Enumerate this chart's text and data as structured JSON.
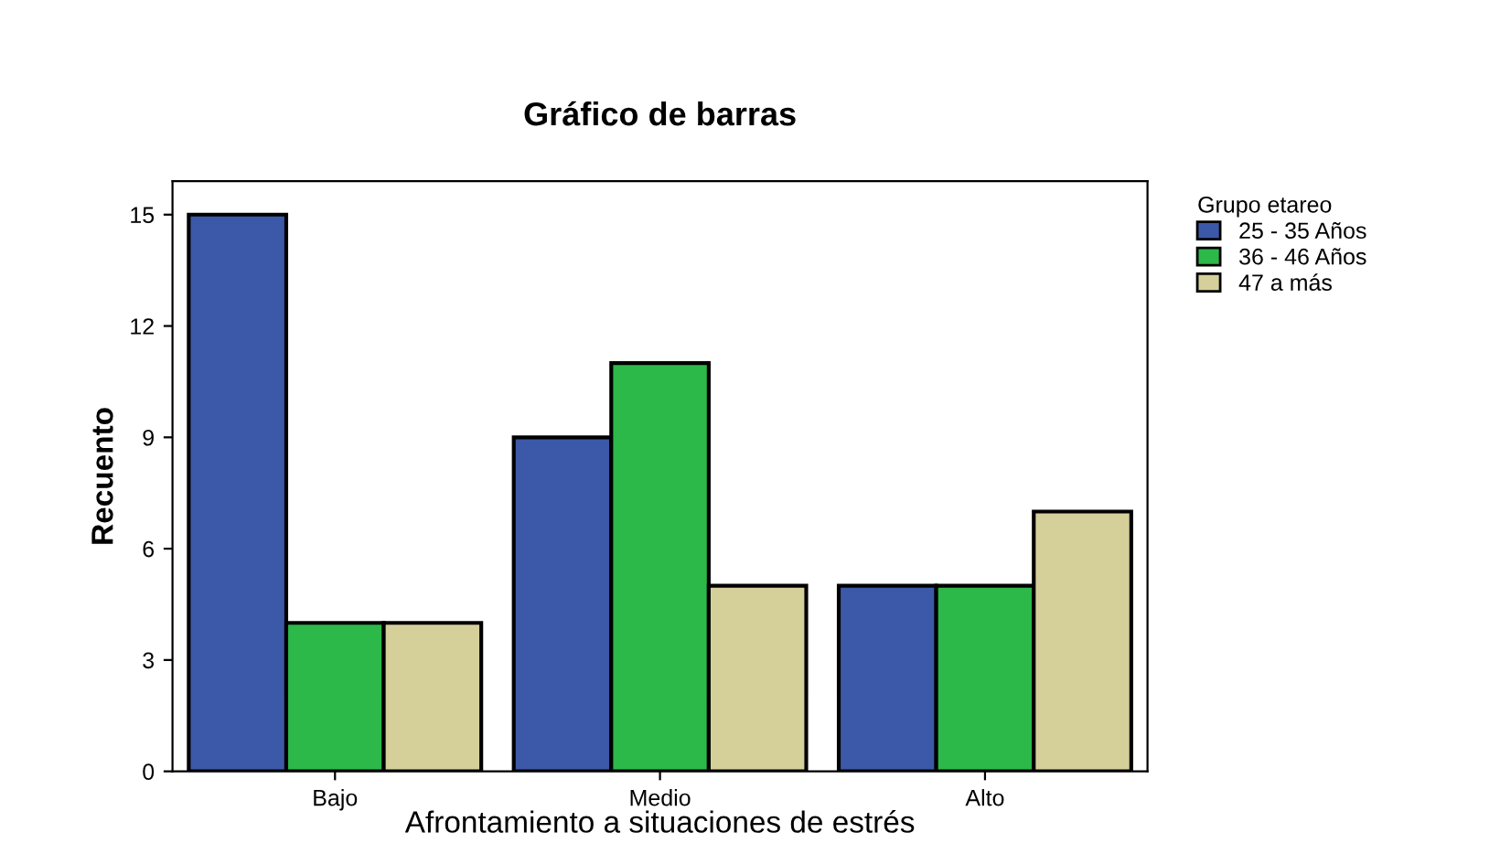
{
  "chart_data": {
    "type": "bar",
    "title": "Gráfico de barras",
    "xlabel": "Afrontamiento a situaciones de estrés",
    "ylabel": "Recuento",
    "legend_title": "Grupo etareo",
    "categories": [
      "Bajo",
      "Medio",
      "Alto"
    ],
    "series": [
      {
        "name": "25 - 35 Años",
        "color": "#3c58a8",
        "values": [
          15,
          9,
          5
        ]
      },
      {
        "name": "36 - 46 Años",
        "color": "#2db84a",
        "values": [
          4,
          11,
          5
        ]
      },
      {
        "name": "47 a más",
        "color": "#d5cf9a",
        "values": [
          4,
          5,
          7
        ]
      }
    ],
    "ylim": [
      0,
      15.9
    ],
    "yticks": [
      0,
      3,
      6,
      9,
      12,
      15
    ],
    "grid": false,
    "legend": "top right"
  }
}
